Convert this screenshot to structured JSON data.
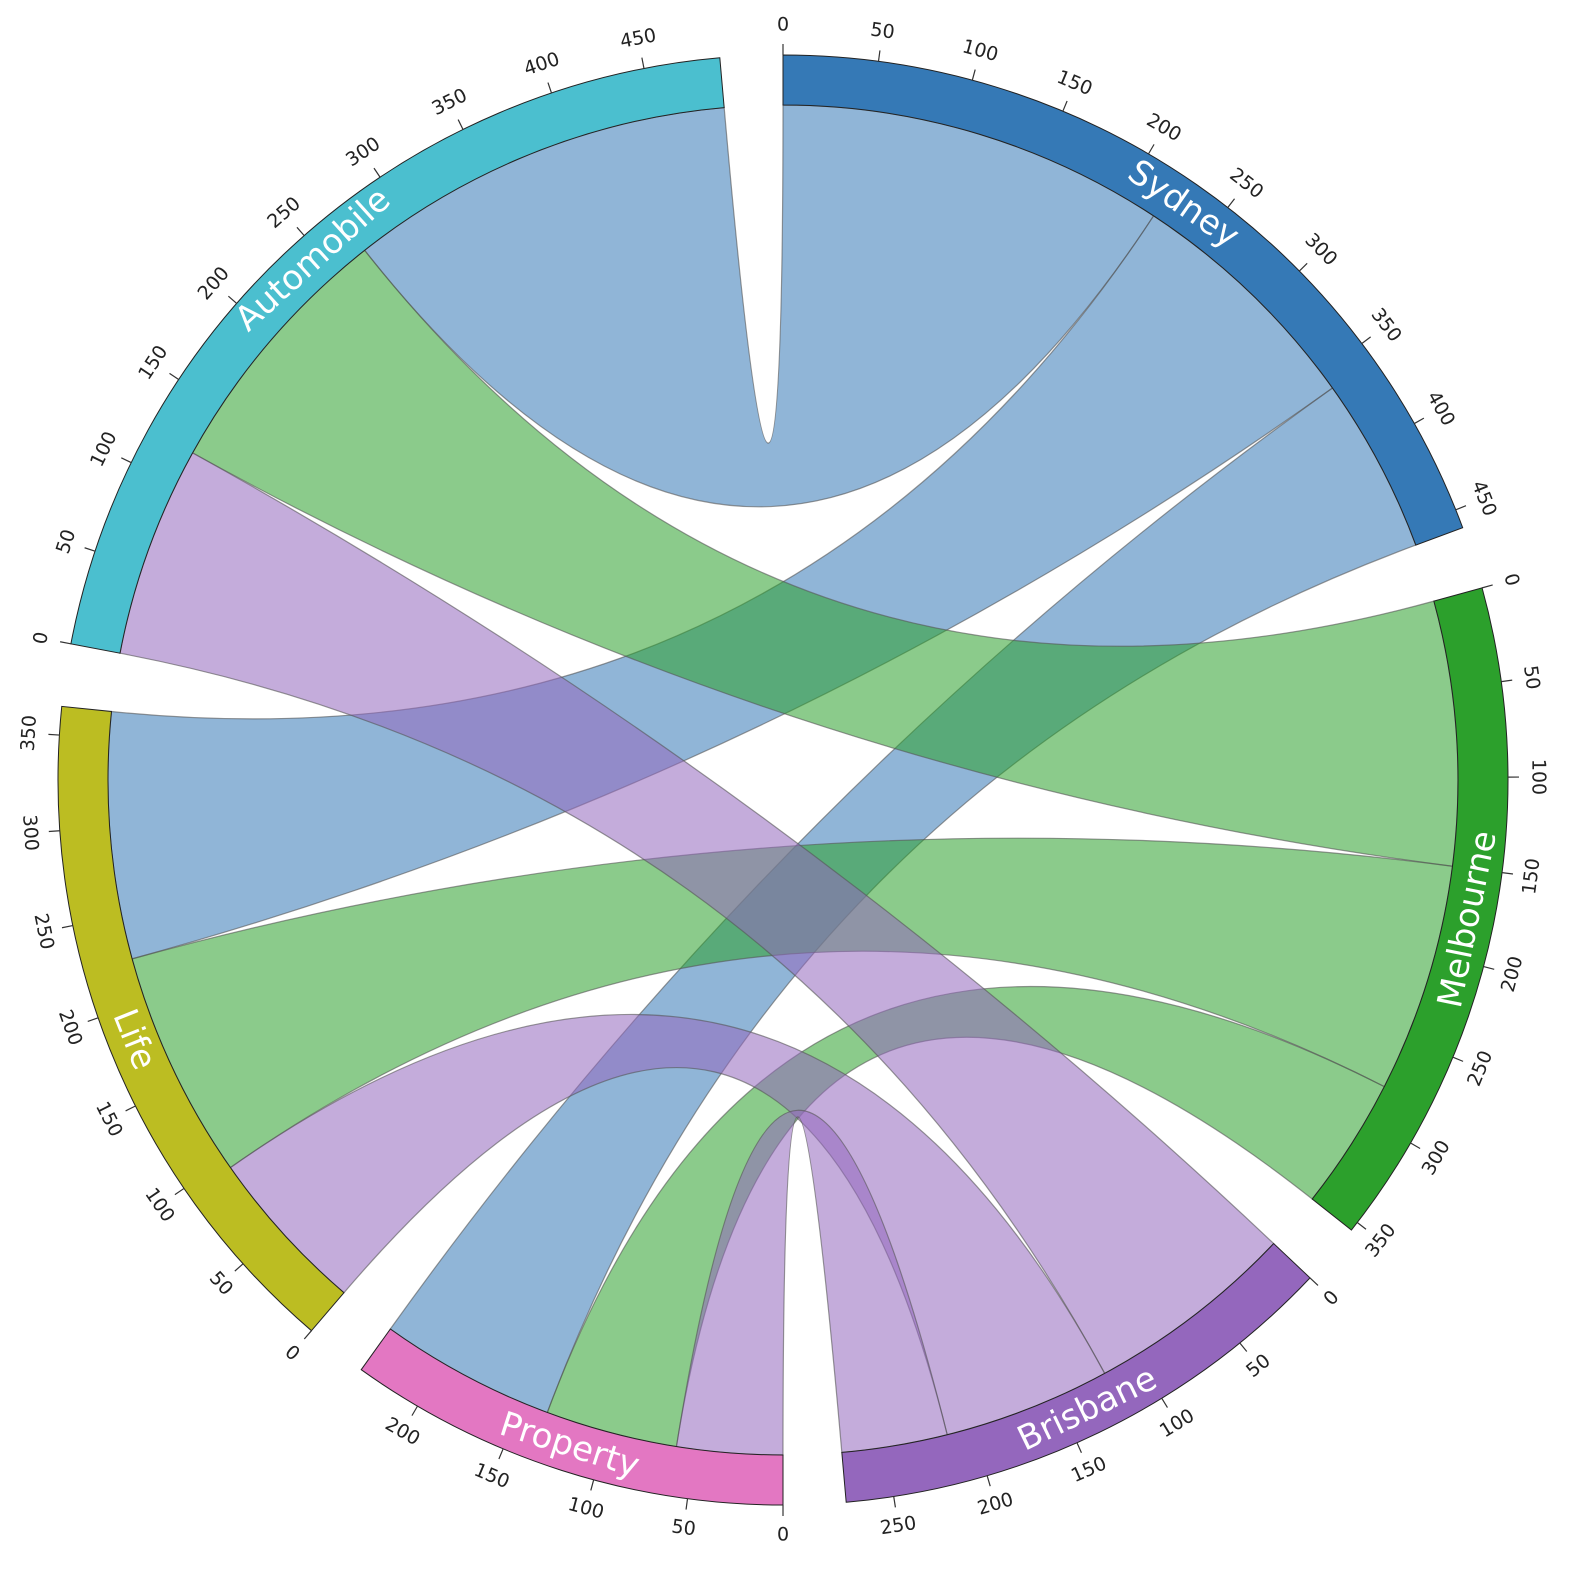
{
  "chart_data": {
    "type": "chord",
    "nodes": [
      {
        "name": "Sydney",
        "color": "#3579b6",
        "ticks": [
          0,
          50,
          100,
          150,
          200,
          250,
          300,
          350,
          400,
          450
        ]
      },
      {
        "name": "Melbourne",
        "color": "#2ca02c",
        "ticks": [
          0,
          50,
          100,
          150,
          200,
          250,
          300,
          350
        ]
      },
      {
        "name": "Brisbane",
        "color": "#9467bd",
        "ticks": [
          0,
          50,
          100,
          150,
          200,
          250
        ]
      },
      {
        "name": "Property",
        "color": "#e377c2",
        "ticks": [
          0,
          50,
          100,
          150,
          200
        ]
      },
      {
        "name": "Life",
        "color": "#bcbd22",
        "ticks": [
          0,
          50,
          100,
          150,
          200,
          250,
          300,
          350
        ]
      },
      {
        "name": "Automobile",
        "color": "#4bbfcf",
        "ticks": [
          0,
          50,
          100,
          150,
          200,
          250,
          300,
          350,
          400,
          450
        ]
      }
    ],
    "links": [
      {
        "source": 0,
        "target": 5,
        "value": 220
      },
      {
        "source": 0,
        "target": 4,
        "value": 140
      },
      {
        "source": 0,
        "target": 3,
        "value": 100
      },
      {
        "source": 1,
        "target": 5,
        "value": 150
      },
      {
        "source": 1,
        "target": 4,
        "value": 130
      },
      {
        "source": 1,
        "target": 3,
        "value": 75
      },
      {
        "source": 2,
        "target": 5,
        "value": 120
      },
      {
        "source": 2,
        "target": 4,
        "value": 95
      },
      {
        "source": 2,
        "target": 3,
        "value": 60
      }
    ]
  }
}
